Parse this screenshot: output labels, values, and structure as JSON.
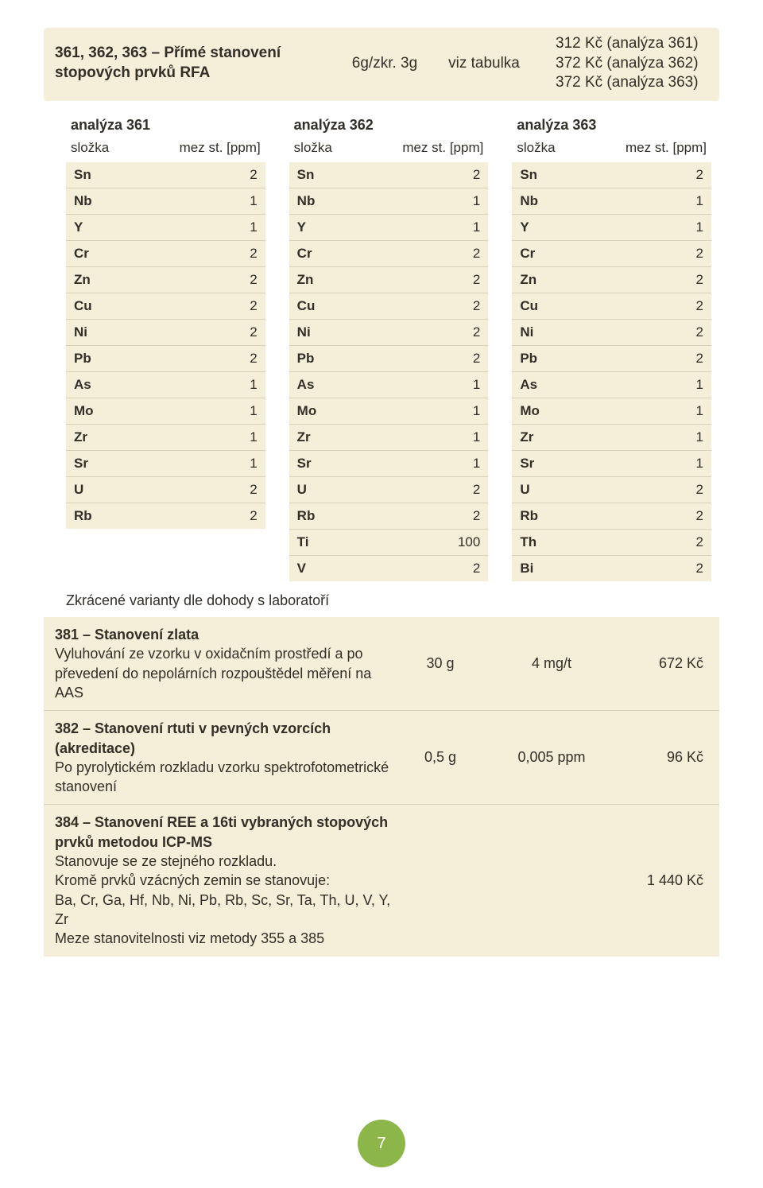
{
  "colors": {
    "beige": "#f5efd9",
    "beigeBorder": "#d9d2b8",
    "text": "#322e28",
    "badge": "#8cb54a",
    "white": "#ffffff"
  },
  "topbar": {
    "title": "361, 362, 363 – Přímé stanovení stopových prvků RFA",
    "col1": "6g/zkr. 3g",
    "col2": "viz tabulka",
    "price1": "312 Kč (analýza 361)",
    "price2": "372 Kč (analýza 362)",
    "price3": "372 Kč (analýza 363)"
  },
  "tables": {
    "header_col1": "složka",
    "header_col2": "mez st. [ppm]",
    "t361": {
      "title": "analýza 361",
      "rows": [
        {
          "el": "Sn",
          "v": "2"
        },
        {
          "el": "Nb",
          "v": "1"
        },
        {
          "el": "Y",
          "v": "1"
        },
        {
          "el": "Cr",
          "v": "2"
        },
        {
          "el": "Zn",
          "v": "2"
        },
        {
          "el": "Cu",
          "v": "2"
        },
        {
          "el": "Ni",
          "v": "2"
        },
        {
          "el": "Pb",
          "v": "2"
        },
        {
          "el": "As",
          "v": "1"
        },
        {
          "el": "Mo",
          "v": "1"
        },
        {
          "el": "Zr",
          "v": "1"
        },
        {
          "el": "Sr",
          "v": "1"
        },
        {
          "el": "U",
          "v": "2"
        },
        {
          "el": "Rb",
          "v": "2"
        }
      ]
    },
    "t362": {
      "title": "analýza 362",
      "rows": [
        {
          "el": "Sn",
          "v": "2"
        },
        {
          "el": "Nb",
          "v": "1"
        },
        {
          "el": "Y",
          "v": "1"
        },
        {
          "el": "Cr",
          "v": "2"
        },
        {
          "el": "Zn",
          "v": "2"
        },
        {
          "el": "Cu",
          "v": "2"
        },
        {
          "el": "Ni",
          "v": "2"
        },
        {
          "el": "Pb",
          "v": "2"
        },
        {
          "el": "As",
          "v": "1"
        },
        {
          "el": "Mo",
          "v": "1"
        },
        {
          "el": "Zr",
          "v": "1"
        },
        {
          "el": "Sr",
          "v": "1"
        },
        {
          "el": "U",
          "v": "2"
        },
        {
          "el": "Rb",
          "v": "2"
        },
        {
          "el": "Ti",
          "v": "100"
        },
        {
          "el": "V",
          "v": "2"
        }
      ]
    },
    "t363": {
      "title": "analýza 363",
      "rows": [
        {
          "el": "Sn",
          "v": "2"
        },
        {
          "el": "Nb",
          "v": "1"
        },
        {
          "el": "Y",
          "v": "1"
        },
        {
          "el": "Cr",
          "v": "2"
        },
        {
          "el": "Zn",
          "v": "2"
        },
        {
          "el": "Cu",
          "v": "2"
        },
        {
          "el": "Ni",
          "v": "2"
        },
        {
          "el": "Pb",
          "v": "2"
        },
        {
          "el": "As",
          "v": "1"
        },
        {
          "el": "Mo",
          "v": "1"
        },
        {
          "el": "Zr",
          "v": "1"
        },
        {
          "el": "Sr",
          "v": "1"
        },
        {
          "el": "U",
          "v": "2"
        },
        {
          "el": "Rb",
          "v": "2"
        },
        {
          "el": "Th",
          "v": "2"
        },
        {
          "el": "Bi",
          "v": "2"
        }
      ]
    }
  },
  "note": "Zkrácené varianty dle dohody s laboratoří",
  "bigrows": [
    {
      "bold": "381 – Stanovení zlata",
      "rest": "Vyluhování ze vzorku v oxidačním prostředí a po převedení do nepolárních rozpouštědel měření na AAS",
      "a": "30 g",
      "b": "4 mg/t",
      "c": "672 Kč"
    },
    {
      "bold": "382 – Stanovení rtuti v pevných vzorcích (akreditace)",
      "rest": "Po pyrolytickém rozkladu vzorku spektrofotometrické stanovení",
      "a": "0,5 g",
      "b": "0,005 ppm",
      "c": "96 Kč"
    },
    {
      "bold": "384 – Stanovení REE a 16ti vybraných stopových prvků metodou ICP-MS",
      "rest": "Stanovuje se ze stejného rozkladu.\nKromě prvků vzácných zemin se stanovuje:\nBa, Cr, Ga, Hf, Nb, Ni, Pb, Rb, Sc, Sr, Ta, Th, U, V, Y, Zr\nMeze stanovitelnosti viz metody 355 a 385",
      "a": "",
      "b": "",
      "c": "1 440 Kč"
    }
  ],
  "pagenum": "7"
}
